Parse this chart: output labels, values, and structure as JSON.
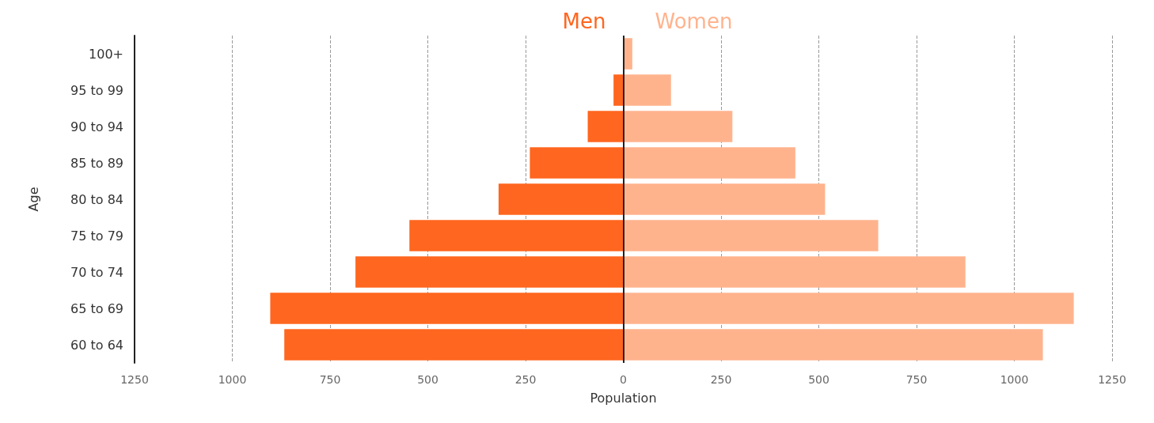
{
  "chart_data": {
    "type": "bar",
    "orientation": "horizontal",
    "xlabel": "Population",
    "ylabel": "Age",
    "categories": [
      "100+",
      "95 to 99",
      "90 to 94",
      "85 to 89",
      "80 to 84",
      "75 to 79",
      "70 to 74",
      "65 to 69",
      "60 to 64"
    ],
    "series": [
      {
        "name": "Men",
        "color": "#ff661f",
        "values": [
          0,
          -25,
          -91,
          -239,
          -319,
          -547,
          -685,
          -903,
          -867
        ]
      },
      {
        "name": "Women",
        "color": "#ffb38d",
        "values": [
          23,
          122,
          279,
          440,
          516,
          652,
          875,
          1152,
          1073
        ]
      }
    ],
    "xlim": [
      -1250,
      1250
    ],
    "xticks": [
      {
        "value": -1250,
        "label": "1250"
      },
      {
        "value": -1000,
        "label": "1000"
      },
      {
        "value": -750,
        "label": "750"
      },
      {
        "value": -500,
        "label": "500"
      },
      {
        "value": -250,
        "label": "250"
      },
      0,
      250,
      500,
      750,
      1000,
      1250
    ],
    "ref_lines": [
      {
        "axis": "x",
        "value": 0,
        "color": "#222222"
      }
    ],
    "grid": "x",
    "legend": false,
    "stacked": true
  }
}
